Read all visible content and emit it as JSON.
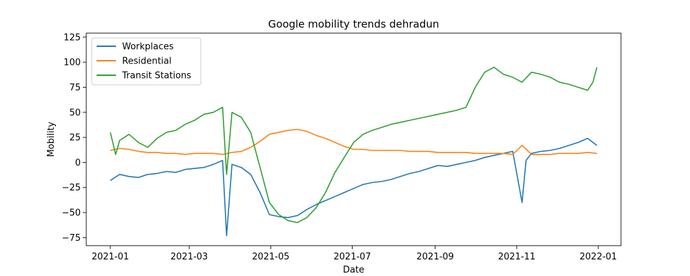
{
  "chart_data": {
    "type": "line",
    "title": "Google mobility trends dehradun",
    "xlabel": "Date",
    "ylabel": "Mobility",
    "xlim": [
      "2020-12-14",
      "2022-01-18"
    ],
    "ylim": [
      -83,
      129
    ],
    "x_ticks": [
      "2021-01",
      "2021-03",
      "2021-05",
      "2021-07",
      "2021-09",
      "2021-11",
      "2022-01"
    ],
    "x_tick_dates": [
      "2021-01-01",
      "2021-03-01",
      "2021-05-01",
      "2021-07-01",
      "2021-09-01",
      "2021-11-01",
      "2022-01-01"
    ],
    "y_ticks": [
      -75,
      -50,
      -25,
      0,
      25,
      50,
      75,
      100,
      125
    ],
    "grid": false,
    "legend": "top-left",
    "series": [
      {
        "name": "Workplaces",
        "color": "#1f77b4",
        "points": [
          [
            "2021-01-01",
            -18
          ],
          [
            "2021-01-08",
            -12
          ],
          [
            "2021-01-15",
            -14
          ],
          [
            "2021-01-22",
            -15
          ],
          [
            "2021-01-29",
            -12
          ],
          [
            "2021-02-05",
            -11
          ],
          [
            "2021-02-12",
            -9
          ],
          [
            "2021-02-19",
            -10
          ],
          [
            "2021-02-26",
            -7
          ],
          [
            "2021-03-05",
            -6
          ],
          [
            "2021-03-12",
            -5
          ],
          [
            "2021-03-19",
            -2
          ],
          [
            "2021-03-26",
            2
          ],
          [
            "2021-03-29",
            -73
          ],
          [
            "2021-04-02",
            -2
          ],
          [
            "2021-04-09",
            -5
          ],
          [
            "2021-04-16",
            -12
          ],
          [
            "2021-04-23",
            -30
          ],
          [
            "2021-04-30",
            -52
          ],
          [
            "2021-05-07",
            -54
          ],
          [
            "2021-05-14",
            -55
          ],
          [
            "2021-05-21",
            -53
          ],
          [
            "2021-05-28",
            -47
          ],
          [
            "2021-06-04",
            -42
          ],
          [
            "2021-06-11",
            -38
          ],
          [
            "2021-06-18",
            -34
          ],
          [
            "2021-06-25",
            -30
          ],
          [
            "2021-07-02",
            -26
          ],
          [
            "2021-07-09",
            -22
          ],
          [
            "2021-07-16",
            -20
          ],
          [
            "2021-07-23",
            -19
          ],
          [
            "2021-07-30",
            -17
          ],
          [
            "2021-08-06",
            -14
          ],
          [
            "2021-08-13",
            -11
          ],
          [
            "2021-08-20",
            -9
          ],
          [
            "2021-08-27",
            -6
          ],
          [
            "2021-09-03",
            -3
          ],
          [
            "2021-09-10",
            -4
          ],
          [
            "2021-09-17",
            -2
          ],
          [
            "2021-09-24",
            0
          ],
          [
            "2021-10-01",
            2
          ],
          [
            "2021-10-08",
            5
          ],
          [
            "2021-10-15",
            7
          ],
          [
            "2021-10-22",
            9
          ],
          [
            "2021-10-29",
            11
          ],
          [
            "2021-11-05",
            -40
          ],
          [
            "2021-11-08",
            2
          ],
          [
            "2021-11-12",
            9
          ],
          [
            "2021-11-19",
            11
          ],
          [
            "2021-11-26",
            12
          ],
          [
            "2021-12-03",
            14
          ],
          [
            "2021-12-10",
            17
          ],
          [
            "2021-12-17",
            20
          ],
          [
            "2021-12-24",
            24
          ],
          [
            "2021-12-28",
            20
          ],
          [
            "2021-12-31",
            17
          ]
        ]
      },
      {
        "name": "Residential",
        "color": "#ff7f0e",
        "points": [
          [
            "2021-01-01",
            12
          ],
          [
            "2021-01-08",
            14
          ],
          [
            "2021-01-15",
            13
          ],
          [
            "2021-01-22",
            11
          ],
          [
            "2021-01-29",
            10
          ],
          [
            "2021-02-05",
            10
          ],
          [
            "2021-02-12",
            9
          ],
          [
            "2021-02-19",
            9
          ],
          [
            "2021-02-26",
            8
          ],
          [
            "2021-03-05",
            9
          ],
          [
            "2021-03-12",
            9
          ],
          [
            "2021-03-19",
            9
          ],
          [
            "2021-03-26",
            8
          ],
          [
            "2021-04-02",
            10
          ],
          [
            "2021-04-09",
            11
          ],
          [
            "2021-04-16",
            15
          ],
          [
            "2021-04-23",
            21
          ],
          [
            "2021-04-30",
            28
          ],
          [
            "2021-05-07",
            30
          ],
          [
            "2021-05-14",
            32
          ],
          [
            "2021-05-21",
            33
          ],
          [
            "2021-05-28",
            31
          ],
          [
            "2021-06-04",
            27
          ],
          [
            "2021-06-11",
            24
          ],
          [
            "2021-06-18",
            20
          ],
          [
            "2021-06-25",
            16
          ],
          [
            "2021-07-02",
            13
          ],
          [
            "2021-07-09",
            13
          ],
          [
            "2021-07-16",
            12
          ],
          [
            "2021-07-23",
            12
          ],
          [
            "2021-07-30",
            12
          ],
          [
            "2021-08-06",
            12
          ],
          [
            "2021-08-13",
            11
          ],
          [
            "2021-08-20",
            11
          ],
          [
            "2021-08-27",
            11
          ],
          [
            "2021-09-03",
            10
          ],
          [
            "2021-09-10",
            10
          ],
          [
            "2021-09-17",
            10
          ],
          [
            "2021-09-24",
            10
          ],
          [
            "2021-10-01",
            9
          ],
          [
            "2021-10-08",
            9
          ],
          [
            "2021-10-15",
            9
          ],
          [
            "2021-10-22",
            9
          ],
          [
            "2021-10-29",
            8
          ],
          [
            "2021-11-05",
            17
          ],
          [
            "2021-11-12",
            8
          ],
          [
            "2021-11-19",
            8
          ],
          [
            "2021-11-26",
            8
          ],
          [
            "2021-12-03",
            9
          ],
          [
            "2021-12-10",
            9
          ],
          [
            "2021-12-17",
            9
          ],
          [
            "2021-12-24",
            10
          ],
          [
            "2021-12-31",
            9
          ]
        ]
      },
      {
        "name": "Transit Stations",
        "color": "#2ca02c",
        "points": [
          [
            "2021-01-01",
            30
          ],
          [
            "2021-01-05",
            8
          ],
          [
            "2021-01-08",
            22
          ],
          [
            "2021-01-15",
            28
          ],
          [
            "2021-01-22",
            20
          ],
          [
            "2021-01-29",
            15
          ],
          [
            "2021-02-05",
            24
          ],
          [
            "2021-02-12",
            30
          ],
          [
            "2021-02-19",
            32
          ],
          [
            "2021-02-26",
            38
          ],
          [
            "2021-03-05",
            42
          ],
          [
            "2021-03-12",
            48
          ],
          [
            "2021-03-19",
            50
          ],
          [
            "2021-03-26",
            55
          ],
          [
            "2021-03-29",
            -12
          ],
          [
            "2021-04-02",
            50
          ],
          [
            "2021-04-09",
            45
          ],
          [
            "2021-04-16",
            30
          ],
          [
            "2021-04-23",
            -5
          ],
          [
            "2021-04-30",
            -40
          ],
          [
            "2021-05-07",
            -52
          ],
          [
            "2021-05-14",
            -58
          ],
          [
            "2021-05-21",
            -60
          ],
          [
            "2021-05-28",
            -55
          ],
          [
            "2021-06-04",
            -45
          ],
          [
            "2021-06-11",
            -30
          ],
          [
            "2021-06-18",
            -10
          ],
          [
            "2021-06-25",
            5
          ],
          [
            "2021-07-02",
            20
          ],
          [
            "2021-07-09",
            28
          ],
          [
            "2021-07-16",
            32
          ],
          [
            "2021-07-23",
            35
          ],
          [
            "2021-07-30",
            38
          ],
          [
            "2021-08-06",
            40
          ],
          [
            "2021-08-13",
            42
          ],
          [
            "2021-08-20",
            44
          ],
          [
            "2021-08-27",
            46
          ],
          [
            "2021-09-03",
            48
          ],
          [
            "2021-09-10",
            50
          ],
          [
            "2021-09-17",
            52
          ],
          [
            "2021-09-24",
            55
          ],
          [
            "2021-10-01",
            75
          ],
          [
            "2021-10-08",
            90
          ],
          [
            "2021-10-15",
            95
          ],
          [
            "2021-10-22",
            88
          ],
          [
            "2021-10-29",
            85
          ],
          [
            "2021-11-05",
            80
          ],
          [
            "2021-11-12",
            90
          ],
          [
            "2021-11-19",
            88
          ],
          [
            "2021-11-26",
            85
          ],
          [
            "2021-12-03",
            80
          ],
          [
            "2021-12-10",
            78
          ],
          [
            "2021-12-17",
            75
          ],
          [
            "2021-12-24",
            72
          ],
          [
            "2021-12-28",
            80
          ],
          [
            "2021-12-31",
            95
          ]
        ]
      }
    ]
  }
}
